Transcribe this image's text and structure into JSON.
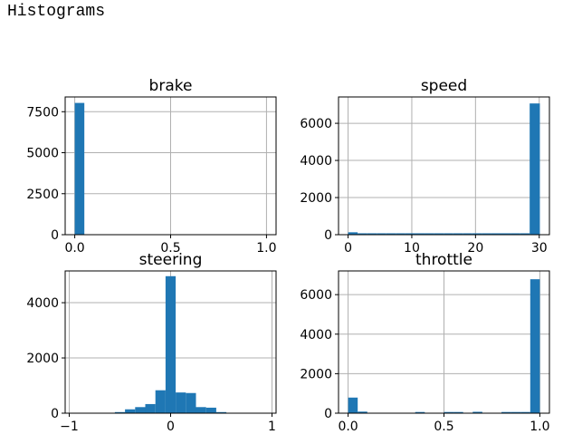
{
  "header": {
    "title": "Histograms"
  },
  "colors": {
    "bar": "#1f77b4",
    "grid": "#b0b0b0",
    "axis": "#000000"
  },
  "chart_data": [
    {
      "type": "bar",
      "title": "brake",
      "grid": true,
      "xlim": [
        -0.05,
        1.05
      ],
      "ylim": [
        0,
        8400
      ],
      "xticks": [
        0.0,
        0.5,
        1.0
      ],
      "xtick_labels": [
        "0.0",
        "0.5",
        "1.0"
      ],
      "yticks": [
        0,
        2500,
        5000,
        7500
      ],
      "ytick_labels": [
        "0",
        "2500",
        "5000",
        "7500"
      ],
      "bars": [
        {
          "x0": 0.0,
          "x1": 0.05,
          "value": 8036
        },
        {
          "x0": 0.05,
          "x1": 0.1,
          "value": 0
        },
        {
          "x0": 0.1,
          "x1": 0.15,
          "value": 0
        },
        {
          "x0": 0.15,
          "x1": 0.2,
          "value": 0
        },
        {
          "x0": 0.2,
          "x1": 0.25,
          "value": 0
        },
        {
          "x0": 0.25,
          "x1": 0.3,
          "value": 0
        },
        {
          "x0": 0.3,
          "x1": 0.35,
          "value": 0
        },
        {
          "x0": 0.35,
          "x1": 0.4,
          "value": 0
        },
        {
          "x0": 0.4,
          "x1": 0.45,
          "value": 0
        },
        {
          "x0": 0.45,
          "x1": 0.5,
          "value": 0
        },
        {
          "x0": 0.5,
          "x1": 0.55,
          "value": 0
        },
        {
          "x0": 0.55,
          "x1": 0.6,
          "value": 0
        },
        {
          "x0": 0.6,
          "x1": 0.65,
          "value": 0
        },
        {
          "x0": 0.65,
          "x1": 0.7,
          "value": 0
        },
        {
          "x0": 0.7,
          "x1": 0.75,
          "value": 0
        },
        {
          "x0": 0.75,
          "x1": 0.8,
          "value": 0
        },
        {
          "x0": 0.8,
          "x1": 0.85,
          "value": 0
        },
        {
          "x0": 0.85,
          "x1": 0.9,
          "value": 0
        },
        {
          "x0": 0.9,
          "x1": 0.95,
          "value": 0
        },
        {
          "x0": 0.95,
          "x1": 1.0,
          "value": 0
        }
      ]
    },
    {
      "type": "bar",
      "title": "speed",
      "grid": true,
      "xlim": [
        -1.5,
        31.6
      ],
      "ylim": [
        0,
        7420
      ],
      "xticks": [
        0,
        10,
        20,
        30
      ],
      "xtick_labels": [
        "0",
        "10",
        "20",
        "30"
      ],
      "yticks": [
        0,
        2000,
        4000,
        6000
      ],
      "ytick_labels": [
        "0",
        "2000",
        "4000",
        "6000"
      ],
      "bars": [
        {
          "x0": 0.0,
          "x1": 1.5,
          "value": 130
        },
        {
          "x0": 1.5,
          "x1": 3.0,
          "value": 75
        },
        {
          "x0": 3.0,
          "x1": 4.5,
          "value": 75
        },
        {
          "x0": 4.5,
          "x1": 6.0,
          "value": 75
        },
        {
          "x0": 6.0,
          "x1": 7.5,
          "value": 75
        },
        {
          "x0": 7.5,
          "x1": 9.0,
          "value": 75
        },
        {
          "x0": 9.0,
          "x1": 10.5,
          "value": 75
        },
        {
          "x0": 10.5,
          "x1": 12.0,
          "value": 75
        },
        {
          "x0": 12.0,
          "x1": 13.5,
          "value": 75
        },
        {
          "x0": 13.5,
          "x1": 15.0,
          "value": 75
        },
        {
          "x0": 15.0,
          "x1": 16.5,
          "value": 75
        },
        {
          "x0": 16.5,
          "x1": 18.0,
          "value": 75
        },
        {
          "x0": 18.0,
          "x1": 19.5,
          "value": 75
        },
        {
          "x0": 19.5,
          "x1": 21.0,
          "value": 75
        },
        {
          "x0": 21.0,
          "x1": 22.5,
          "value": 75
        },
        {
          "x0": 22.5,
          "x1": 24.0,
          "value": 75
        },
        {
          "x0": 24.0,
          "x1": 25.5,
          "value": 75
        },
        {
          "x0": 25.5,
          "x1": 27.0,
          "value": 75
        },
        {
          "x0": 27.0,
          "x1": 28.5,
          "value": 75
        },
        {
          "x0": 28.5,
          "x1": 30.1,
          "value": 7070
        }
      ]
    },
    {
      "type": "bar",
      "title": "steering",
      "grid": true,
      "xlim": [
        -1.04,
        1.04
      ],
      "ylim": [
        0,
        5150
      ],
      "xticks": [
        -1,
        0,
        1
      ],
      "xtick_labels": [
        "−1",
        "0",
        "1"
      ],
      "yticks": [
        0,
        2000,
        4000
      ],
      "ytick_labels": [
        "0",
        "2000",
        "4000"
      ],
      "bars": [
        {
          "x0": -0.55,
          "x1": -0.45,
          "value": 40
        },
        {
          "x0": -0.45,
          "x1": -0.35,
          "value": 140
        },
        {
          "x0": -0.35,
          "x1": -0.25,
          "value": 220
        },
        {
          "x0": -0.25,
          "x1": -0.15,
          "value": 330
        },
        {
          "x0": -0.15,
          "x1": -0.05,
          "value": 830
        },
        {
          "x0": -0.05,
          "x1": 0.05,
          "value": 4960
        },
        {
          "x0": 0.05,
          "x1": 0.15,
          "value": 750
        },
        {
          "x0": 0.15,
          "x1": 0.25,
          "value": 730
        },
        {
          "x0": 0.25,
          "x1": 0.35,
          "value": 220
        },
        {
          "x0": 0.35,
          "x1": 0.45,
          "value": 200
        },
        {
          "x0": 0.45,
          "x1": 0.55,
          "value": 40
        }
      ]
    },
    {
      "type": "bar",
      "title": "throttle",
      "grid": true,
      "xlim": [
        -0.05,
        1.05
      ],
      "ylim": [
        0,
        7200
      ],
      "xticks": [
        0.0,
        0.5,
        1.0
      ],
      "xtick_labels": [
        "0.0",
        "0.5",
        "1.0"
      ],
      "yticks": [
        0,
        2000,
        4000,
        6000
      ],
      "ytick_labels": [
        "0",
        "2000",
        "4000",
        "6000"
      ],
      "bars": [
        {
          "x0": 0.0,
          "x1": 0.05,
          "value": 790
        },
        {
          "x0": 0.05,
          "x1": 0.1,
          "value": 80
        },
        {
          "x0": 0.1,
          "x1": 0.15,
          "value": 10
        },
        {
          "x0": 0.15,
          "x1": 0.2,
          "value": 10
        },
        {
          "x0": 0.2,
          "x1": 0.25,
          "value": 10
        },
        {
          "x0": 0.25,
          "x1": 0.3,
          "value": 10
        },
        {
          "x0": 0.3,
          "x1": 0.35,
          "value": 10
        },
        {
          "x0": 0.35,
          "x1": 0.4,
          "value": 60
        },
        {
          "x0": 0.4,
          "x1": 0.45,
          "value": 10
        },
        {
          "x0": 0.45,
          "x1": 0.5,
          "value": 10
        },
        {
          "x0": 0.5,
          "x1": 0.55,
          "value": 60
        },
        {
          "x0": 0.55,
          "x1": 0.6,
          "value": 60
        },
        {
          "x0": 0.6,
          "x1": 0.65,
          "value": 10
        },
        {
          "x0": 0.65,
          "x1": 0.7,
          "value": 70
        },
        {
          "x0": 0.7,
          "x1": 0.75,
          "value": 10
        },
        {
          "x0": 0.75,
          "x1": 0.8,
          "value": 20
        },
        {
          "x0": 0.8,
          "x1": 0.85,
          "value": 60
        },
        {
          "x0": 0.85,
          "x1": 0.9,
          "value": 60
        },
        {
          "x0": 0.9,
          "x1": 0.95,
          "value": 60
        },
        {
          "x0": 0.95,
          "x1": 1.0,
          "value": 6780
        }
      ]
    }
  ]
}
